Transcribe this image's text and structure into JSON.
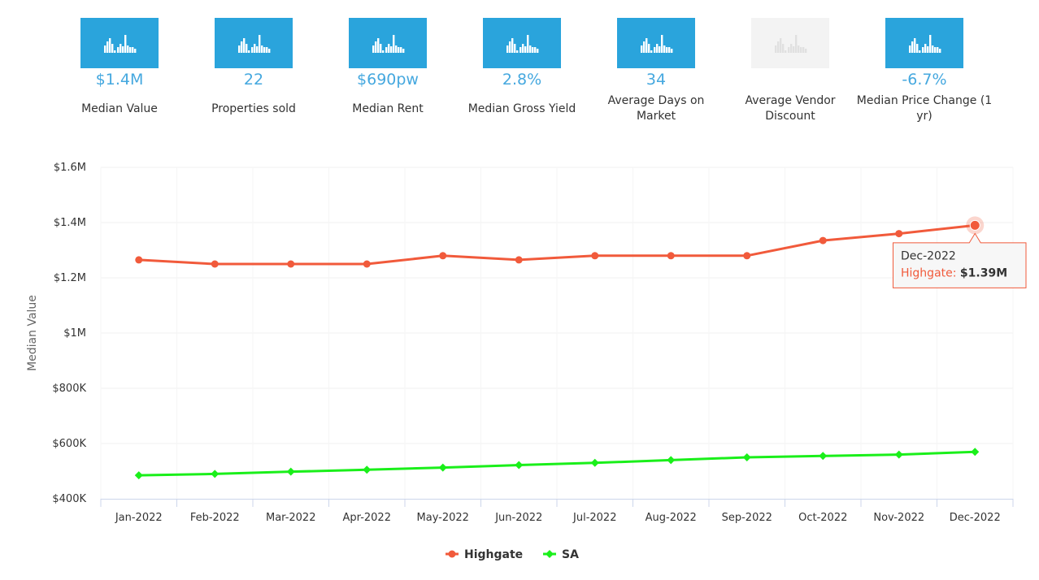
{
  "stats": [
    {
      "value": "$1.4M",
      "label": "Median Value",
      "enabled": true,
      "icon": "bar-chart-icon"
    },
    {
      "value": "22",
      "label": "Properties sold",
      "enabled": true,
      "icon": "bar-chart-icon"
    },
    {
      "value": "$690pw",
      "label": "Median Rent",
      "enabled": true,
      "icon": "bar-chart-icon"
    },
    {
      "value": "2.8%",
      "label": "Median Gross Yield",
      "enabled": true,
      "icon": "bar-chart-icon"
    },
    {
      "value": "34",
      "label": "Average Days on Market",
      "enabled": true,
      "icon": "bar-chart-icon"
    },
    {
      "value": "",
      "label": "Average Vendor Discount",
      "enabled": false,
      "icon": "bar-chart-icon"
    },
    {
      "value": "-6.7%",
      "label": "Median Price Change (1 yr)",
      "enabled": true,
      "icon": "bar-chart-icon"
    }
  ],
  "chart_data": {
    "type": "line",
    "title": "",
    "xlabel": "",
    "ylabel": "Median Value",
    "categories": [
      "Jan-2022",
      "Feb-2022",
      "Mar-2022",
      "Apr-2022",
      "May-2022",
      "Jun-2022",
      "Jul-2022",
      "Aug-2022",
      "Sep-2022",
      "Oct-2022",
      "Nov-2022",
      "Dec-2022"
    ],
    "ylim": [
      400000,
      1600000
    ],
    "yticks": [
      {
        "value": 400000,
        "label": "$400K"
      },
      {
        "value": 600000,
        "label": "$600K"
      },
      {
        "value": 800000,
        "label": "$800K"
      },
      {
        "value": 1000000,
        "label": "$1M"
      },
      {
        "value": 1200000,
        "label": "$1.2M"
      },
      {
        "value": 1400000,
        "label": "$1.4M"
      },
      {
        "value": 1600000,
        "label": "$1.6M"
      }
    ],
    "series": [
      {
        "name": "Highgate",
        "color": "#f15a3b",
        "marker": "circle",
        "values": [
          1265000,
          1250000,
          1250000,
          1250000,
          1280000,
          1265000,
          1280000,
          1280000,
          1280000,
          1335000,
          1360000,
          1390000
        ]
      },
      {
        "name": "SA",
        "color": "#1aef1a",
        "marker": "diamond",
        "values": [
          485000,
          490000,
          498000,
          505000,
          513000,
          522000,
          530000,
          540000,
          550000,
          555000,
          560000,
          570000
        ]
      }
    ],
    "legend": "bottom-center",
    "tooltip": {
      "category": "Dec-2022",
      "series": "Highgate",
      "series_label": "Highgate: ",
      "value_label": "$1.39M"
    }
  }
}
